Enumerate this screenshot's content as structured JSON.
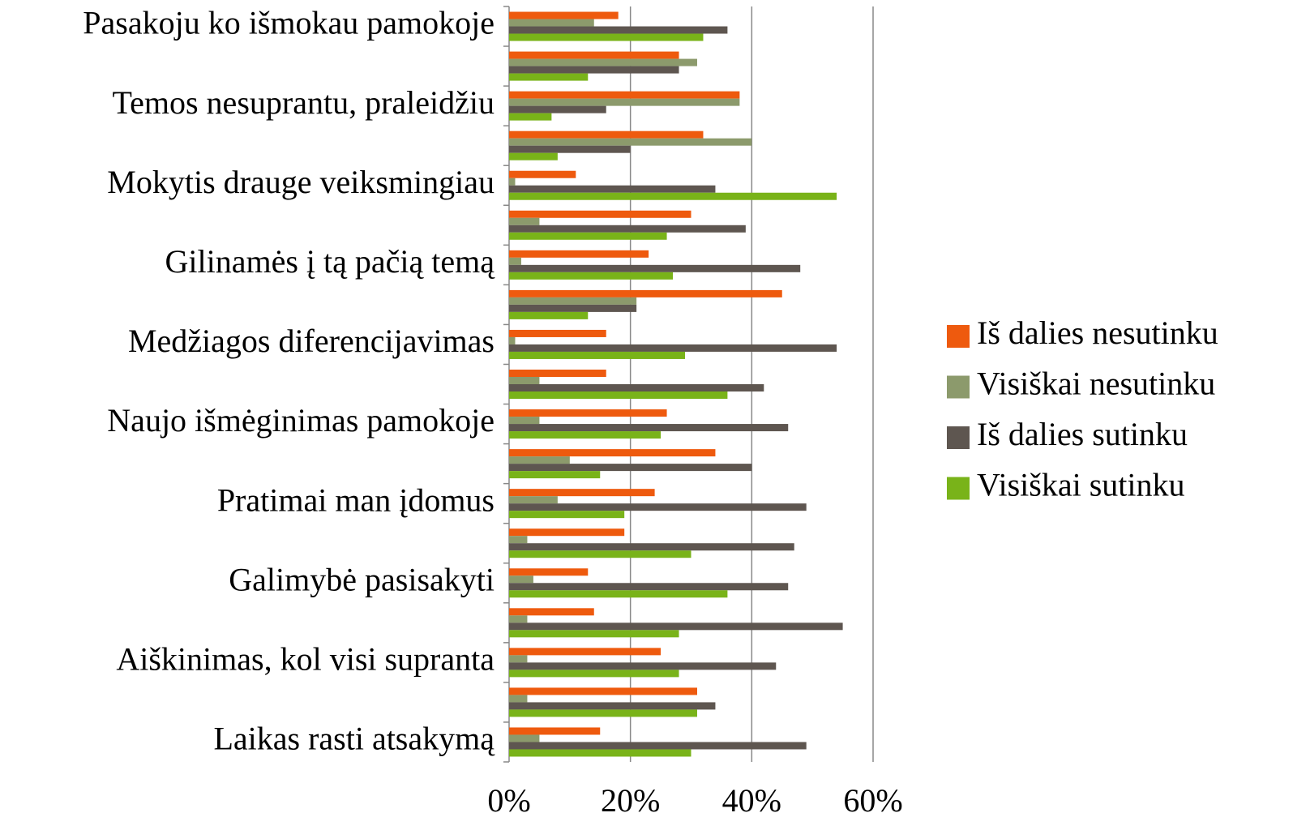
{
  "chart_data": {
    "type": "bar",
    "orientation": "horizontal",
    "categories": [
      "Pasakoju ko išmokau pamokoje",
      null,
      "Temos nesuprantu, praleidžiu",
      null,
      "Mokytis drauge veiksmingiau",
      null,
      "Gilinamės į tą pačią temą",
      null,
      "Medžiagos diferencijavimas",
      null,
      "Naujo išmėginimas pamokoje",
      null,
      "Pratimai man įdomus",
      null,
      "Galimybė pasisakyti",
      null,
      "Aiškinimas, kol visi supranta",
      null,
      "Laikas rasti atsakymą"
    ],
    "series": [
      {
        "name": "Iš dalies nesutinku",
        "color": "#ee5a0e",
        "values": [
          18,
          28,
          38,
          32,
          11,
          30,
          23,
          45,
          16,
          16,
          26,
          34,
          24,
          19,
          13,
          14,
          25,
          31,
          15
        ]
      },
      {
        "name": "Visiškai nesutinku",
        "color": "#8c9a6c",
        "values": [
          14,
          31,
          38,
          40,
          1,
          5,
          2,
          21,
          1,
          5,
          5,
          10,
          8,
          3,
          4,
          3,
          3,
          3,
          5
        ]
      },
      {
        "name": "Iš dalies sutinku",
        "color": "#5e5650",
        "values": [
          36,
          28,
          16,
          20,
          34,
          39,
          48,
          21,
          54,
          42,
          46,
          40,
          49,
          47,
          46,
          55,
          44,
          34,
          49
        ]
      },
      {
        "name": "Visiškai sutinku",
        "color": "#79b319",
        "values": [
          32,
          13,
          7,
          8,
          54,
          26,
          27,
          13,
          29,
          36,
          25,
          15,
          19,
          30,
          36,
          28,
          28,
          31,
          30
        ]
      }
    ],
    "xlim": [
      0,
      60
    ],
    "xticks": [
      {
        "value": 0,
        "label": "0%"
      },
      {
        "value": 20,
        "label": "20%"
      },
      {
        "value": 40,
        "label": "40%"
      },
      {
        "value": 60,
        "label": "60%"
      }
    ],
    "grid": true,
    "legend": "right"
  }
}
